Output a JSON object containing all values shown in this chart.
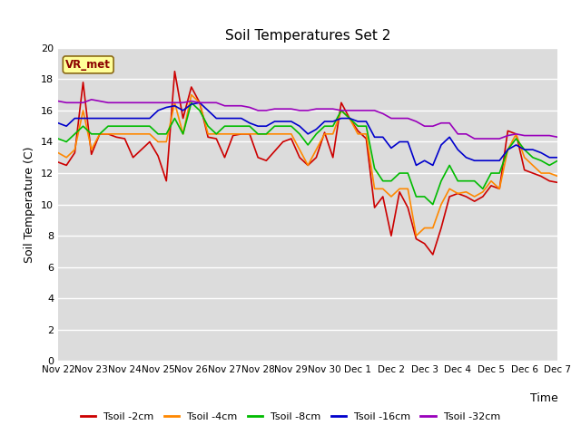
{
  "title": "Soil Temperatures Set 2",
  "xlabel": "Time",
  "ylabel": "Soil Temperature (C)",
  "annotation": "VR_met",
  "ylim": [
    0,
    20
  ],
  "plot_bg_color": "#dcdcdc",
  "fig_bg_color": "#ffffff",
  "xtick_labels": [
    "Nov 22",
    "Nov 23",
    "Nov 24",
    "Nov 25",
    "Nov 26",
    "Nov 27",
    "Nov 28",
    "Nov 29",
    "Nov 30",
    "Dec 1",
    "Dec 2",
    "Dec 3",
    "Dec 4",
    "Dec 5",
    "Dec 6",
    "Dec 7"
  ],
  "series_order": [
    "Tsoil -2cm",
    "Tsoil -4cm",
    "Tsoil -8cm",
    "Tsoil -16cm",
    "Tsoil -32cm"
  ],
  "series_colors": [
    "#cc0000",
    "#ff8800",
    "#00bb00",
    "#0000cc",
    "#9900bb"
  ],
  "tsoil_2cm": [
    12.7,
    12.5,
    13.3,
    17.8,
    13.2,
    14.5,
    14.5,
    14.3,
    14.2,
    13.0,
    13.5,
    14.0,
    13.1,
    11.5,
    18.5,
    15.5,
    17.5,
    16.5,
    14.3,
    14.2,
    13.0,
    14.4,
    14.5,
    14.5,
    13.0,
    12.8,
    13.4,
    14.0,
    14.2,
    13.0,
    12.5,
    13.0,
    14.6,
    13.0,
    16.5,
    15.5,
    14.7,
    14.2,
    9.8,
    10.5,
    8.0,
    10.8,
    9.8,
    7.8,
    7.5,
    6.8,
    8.5,
    10.5,
    10.7,
    10.5,
    10.2,
    10.5,
    11.2,
    11.0,
    14.7,
    14.5,
    12.2,
    12.0,
    11.8,
    11.5,
    11.4
  ],
  "tsoil_4cm": [
    13.3,
    13.0,
    13.5,
    16.0,
    13.5,
    14.5,
    14.5,
    14.5,
    14.5,
    14.5,
    14.5,
    14.5,
    14.0,
    14.0,
    16.5,
    14.5,
    17.0,
    16.5,
    14.5,
    14.5,
    14.5,
    14.5,
    14.5,
    14.5,
    14.5,
    14.5,
    14.5,
    14.5,
    14.5,
    13.5,
    12.5,
    13.5,
    14.5,
    14.5,
    16.0,
    15.5,
    14.5,
    14.5,
    11.0,
    11.0,
    10.5,
    11.0,
    11.0,
    8.0,
    8.5,
    8.5,
    10.0,
    11.0,
    10.7,
    10.8,
    10.5,
    10.8,
    11.5,
    11.0,
    13.5,
    14.5,
    13.0,
    12.5,
    12.0,
    12.0,
    11.8
  ],
  "tsoil_8cm": [
    14.2,
    14.0,
    14.5,
    15.0,
    14.5,
    14.5,
    15.0,
    15.0,
    15.0,
    15.0,
    15.0,
    15.0,
    14.5,
    14.5,
    15.5,
    14.5,
    16.5,
    16.0,
    15.0,
    14.5,
    15.0,
    15.0,
    15.0,
    15.0,
    14.5,
    14.5,
    15.0,
    15.0,
    15.0,
    14.5,
    13.8,
    14.5,
    15.0,
    15.0,
    16.0,
    15.5,
    15.0,
    15.0,
    12.3,
    11.5,
    11.5,
    12.0,
    12.0,
    10.5,
    10.5,
    10.0,
    11.5,
    12.5,
    11.5,
    11.5,
    11.5,
    11.0,
    12.0,
    12.0,
    13.5,
    14.2,
    13.5,
    13.0,
    12.8,
    12.5,
    12.8
  ],
  "tsoil_16cm": [
    15.2,
    15.0,
    15.5,
    15.5,
    15.5,
    15.5,
    15.5,
    15.5,
    15.5,
    15.5,
    15.5,
    15.5,
    16.0,
    16.2,
    16.3,
    16.0,
    16.4,
    16.5,
    16.0,
    15.5,
    15.5,
    15.5,
    15.5,
    15.2,
    15.0,
    15.0,
    15.3,
    15.3,
    15.3,
    15.0,
    14.5,
    14.8,
    15.3,
    15.3,
    15.5,
    15.5,
    15.3,
    15.3,
    14.3,
    14.3,
    13.6,
    14.0,
    14.0,
    12.5,
    12.8,
    12.5,
    13.8,
    14.3,
    13.5,
    13.0,
    12.8,
    12.8,
    12.8,
    12.8,
    13.5,
    13.8,
    13.5,
    13.5,
    13.3,
    13.0,
    13.0
  ],
  "tsoil_32cm": [
    16.6,
    16.5,
    16.5,
    16.5,
    16.7,
    16.6,
    16.5,
    16.5,
    16.5,
    16.5,
    16.5,
    16.5,
    16.5,
    16.5,
    16.5,
    16.5,
    16.6,
    16.5,
    16.5,
    16.5,
    16.3,
    16.3,
    16.3,
    16.2,
    16.0,
    16.0,
    16.1,
    16.1,
    16.1,
    16.0,
    16.0,
    16.1,
    16.1,
    16.1,
    16.0,
    16.0,
    16.0,
    16.0,
    16.0,
    15.8,
    15.5,
    15.5,
    15.5,
    15.3,
    15.0,
    15.0,
    15.2,
    15.2,
    14.5,
    14.5,
    14.2,
    14.2,
    14.2,
    14.2,
    14.4,
    14.5,
    14.4,
    14.4,
    14.4,
    14.4,
    14.3
  ]
}
